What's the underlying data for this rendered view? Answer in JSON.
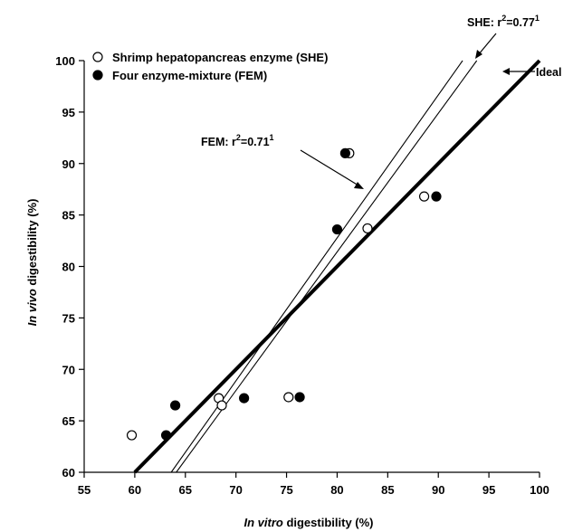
{
  "chart_data": {
    "type": "scatter",
    "xlabel": {
      "italic": "In vitro",
      "rest": " digestibility (%)"
    },
    "ylabel": {
      "italic": "In vivo",
      "rest": " digestibility (%)"
    },
    "xlim": [
      55,
      100
    ],
    "ylim": [
      60,
      100
    ],
    "xticks": [
      "55",
      "60",
      "65",
      "70",
      "75",
      "80",
      "85",
      "90",
      "95",
      "100"
    ],
    "yticks": [
      "60",
      "65",
      "70",
      "75",
      "80",
      "85",
      "90",
      "95",
      "100"
    ],
    "grid": false,
    "legend_placement": "top-left",
    "series": [
      {
        "name": "Shrimp hepatopancreas enzyme (SHE)",
        "marker": "open-circle",
        "points": [
          [
            59.7,
            63.6
          ],
          [
            68.3,
            67.2
          ],
          [
            68.6,
            66.5
          ],
          [
            75.2,
            67.3
          ],
          [
            81.2,
            91.0
          ],
          [
            83.0,
            83.7
          ],
          [
            88.6,
            86.8
          ]
        ]
      },
      {
        "name": "Four enzyme-mixture (FEM)",
        "marker": "filled-circle",
        "points": [
          [
            63.1,
            63.6
          ],
          [
            64.0,
            66.5
          ],
          [
            70.8,
            67.2
          ],
          [
            76.3,
            67.3
          ],
          [
            80.0,
            83.6
          ],
          [
            80.8,
            91.0
          ],
          [
            89.8,
            86.8
          ]
        ]
      }
    ],
    "lines": [
      {
        "name": "Ideal",
        "from": [
          60,
          60
        ],
        "to": [
          100,
          100
        ],
        "weight": "thick"
      },
      {
        "name": "SHE fit",
        "from": [
          64.1,
          60
        ],
        "to": [
          93.8,
          100
        ],
        "weight": "thin"
      },
      {
        "name": "FEM fit",
        "from": [
          63.6,
          60
        ],
        "to": [
          92.4,
          100
        ],
        "weight": "thin"
      }
    ],
    "annotations": [
      {
        "id": "she",
        "text": "SHE: r",
        "sup": "2",
        "text2": "=0.77",
        "sup2": "1"
      },
      {
        "id": "fem",
        "text": "FEM: r",
        "sup": "2",
        "text2": "=0.71",
        "sup2": "1"
      },
      {
        "id": "ideal",
        "text": "Ideal"
      }
    ]
  }
}
